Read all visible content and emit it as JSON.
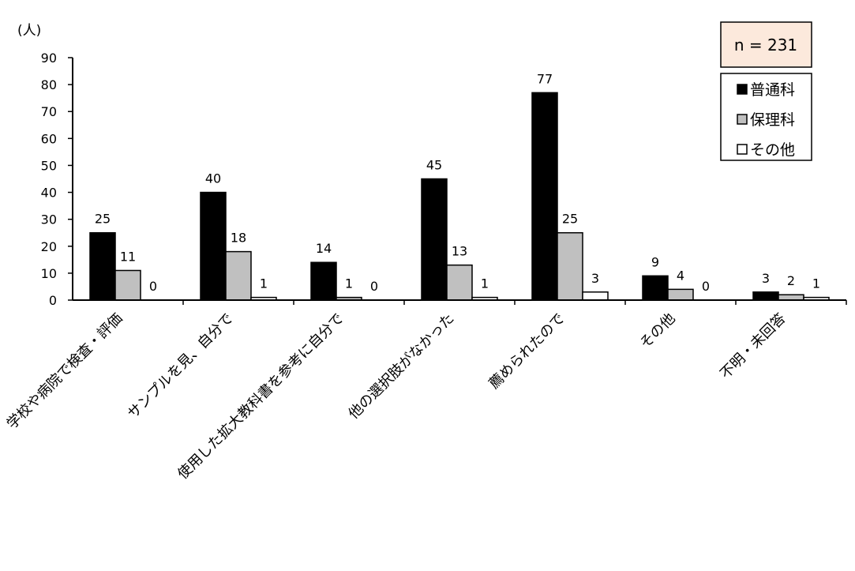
{
  "chart_data": {
    "type": "bar",
    "title": "",
    "ylabel": "(人)",
    "xlabel": "",
    "ylim": [
      0,
      90
    ],
    "yticks": [
      0,
      10,
      20,
      30,
      40,
      50,
      60,
      70,
      80,
      90
    ],
    "grid": false,
    "legend_position": "top-right",
    "annotation": "n = 231",
    "categories": [
      "学校や病院で検査・評価",
      "サンプルを見、自分で",
      "使用した拡大教科書を参考に自分で",
      "他の選択肢がなかった",
      "薦められたので",
      "その他",
      "不明・未回答"
    ],
    "series": [
      {
        "name": "普通科",
        "color": "#000000",
        "values": [
          25,
          40,
          14,
          45,
          77,
          9,
          3
        ]
      },
      {
        "name": "保理科",
        "color": "#c0c0c0",
        "values": [
          11,
          18,
          1,
          13,
          25,
          4,
          2
        ]
      },
      {
        "name": "その他",
        "color": "#ffffff",
        "values": [
          0,
          1,
          0,
          1,
          3,
          0,
          1
        ]
      }
    ],
    "annotation_fill": "#fce9dc"
  }
}
